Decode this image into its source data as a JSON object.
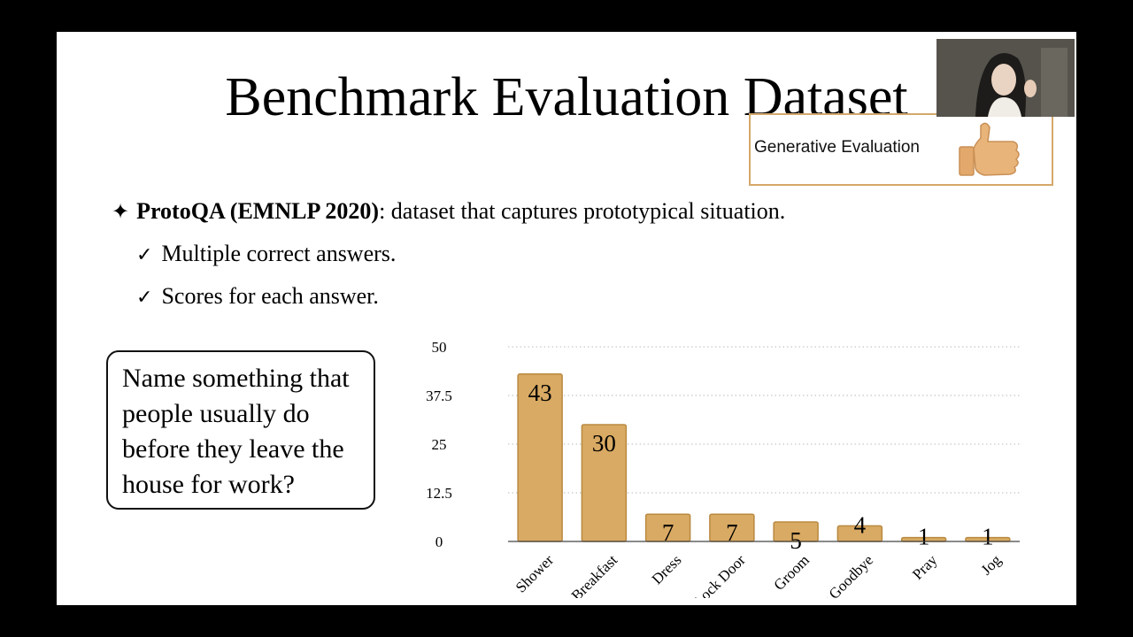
{
  "slide": {
    "title": "Benchmark Evaluation Dataset",
    "bullet": {
      "name": "ProtoQA (EMNLP 2020)",
      "text": ": dataset that captures prototypical situation."
    },
    "subpoints": [
      "Multiple correct answers.",
      "Scores for each answer."
    ],
    "question": "Name something that people usually do before they leave the house for work?"
  },
  "overlay": {
    "label": "Generative Evaluation",
    "icon": "thumbs-up-icon"
  },
  "webcam": {
    "icon": "presenter-video"
  },
  "colors": {
    "bar": "#d9aa63",
    "bar_edge": "#b98940",
    "gridline": "#c8c8c8"
  },
  "chart_data": {
    "type": "bar",
    "categories": [
      "Shower",
      "Breakfast",
      "Dress",
      "Lock Door",
      "Groom",
      "Say Goodbye",
      "Pray",
      "Jog"
    ],
    "values": [
      43,
      30,
      7,
      7,
      5,
      4,
      1,
      1
    ],
    "data_labels": [
      "43",
      "30",
      "7",
      "7",
      "5",
      "4",
      "1",
      "1"
    ],
    "yticks": [
      "0",
      "12.5",
      "25",
      "37.5",
      "50"
    ],
    "ylim": [
      0,
      50
    ],
    "grid": "dotted horizontal",
    "title": "",
    "xlabel": "",
    "ylabel": ""
  }
}
